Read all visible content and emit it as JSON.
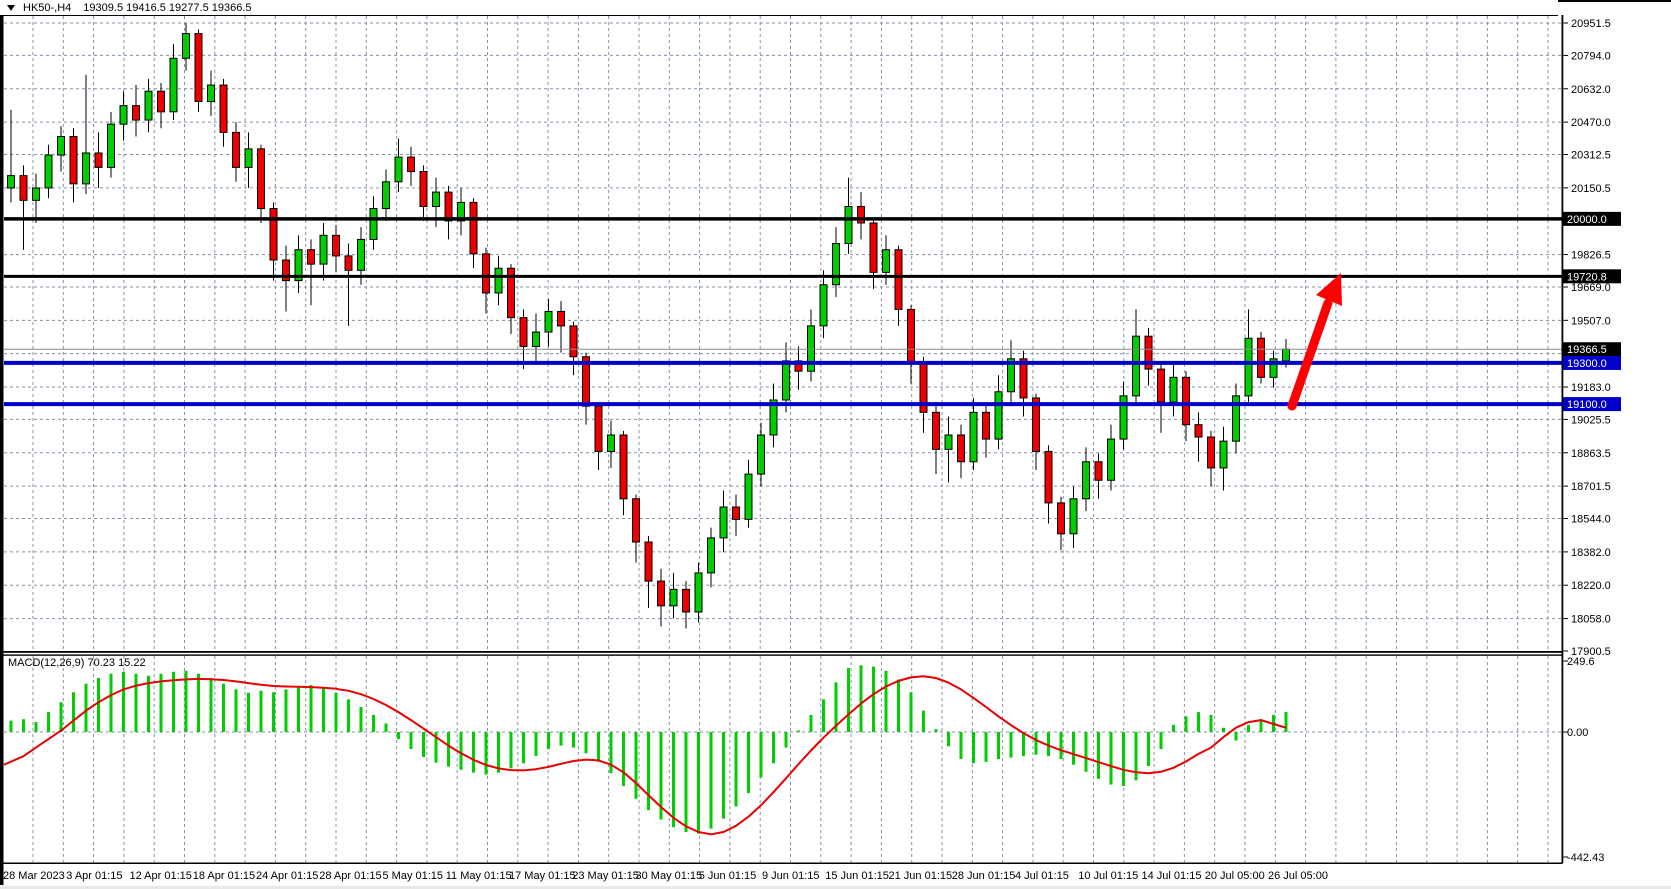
{
  "window": {
    "title_symbol": "HK50-,H4",
    "title_ohlc": "19309.5 19416.5 19277.5 19366.5"
  },
  "chart_data": {
    "type": "candlestick",
    "symbol": "HK50-,H4",
    "timeframe": "H4",
    "last_bar": {
      "open": 19309.5,
      "high": 19416.5,
      "low": 19277.5,
      "close": 19366.5
    },
    "price_axis": {
      "min": 17900.5,
      "max": 20951.5,
      "tick_labels": [
        "20951.5",
        "20794.0",
        "20632.0",
        "20470.0",
        "20312.5",
        "20150.5",
        "19826.5",
        "19669.0",
        "19507.0",
        "19183.0",
        "19025.5",
        "18863.5",
        "18701.5",
        "18544.0",
        "18382.0",
        "18220.0",
        "18058.0",
        "17900.5"
      ],
      "grid_prices": [
        20951.5,
        20794.0,
        20632.0,
        20470.0,
        20312.5,
        20150.5,
        19826.5,
        19669.0,
        19507.0,
        19345.0,
        19183.0,
        19025.5,
        18863.5,
        18701.5,
        18544.0,
        18382.0,
        18220.0,
        18058.0
      ],
      "tagged_levels": [
        {
          "label": "20000.0",
          "value": 20000.0,
          "bg": "#000000"
        },
        {
          "label": "19720.8",
          "value": 19720.8,
          "bg": "#000000"
        },
        {
          "label": "19366.5",
          "value": 19366.5,
          "bg": "#000000"
        },
        {
          "label": "19300.0",
          "value": 19300.0,
          "bg": "#0000C8"
        },
        {
          "label": "19100.0",
          "value": 19100.0,
          "bg": "#0000C8"
        }
      ]
    },
    "time_axis": {
      "labels": [
        "28 Mar 2023",
        "3 Apr 01:15",
        "12 Apr 01:15",
        "18 Apr 01:15",
        "24 Apr 01:15",
        "28 Apr 01:15",
        "5 May 01:15",
        "11 May 01:15",
        "17 May 01:15",
        "23 May 01:15",
        "30 May 01:15",
        "5 Jun 01:15",
        "9 Jun 01:15",
        "15 Jun 01:15",
        "21 Jun 01:15",
        "28 Jun 01:15",
        "4 Jul 01:15",
        "10 Jul 01:15",
        "14 Jul 01:15",
        "20 Jul 05:00",
        "26 Jul 05:00"
      ]
    },
    "levels": [
      {
        "value": 20000.0,
        "color": "#000000",
        "width": 3.5
      },
      {
        "value": 19720.8,
        "color": "#000000",
        "width": 3
      },
      {
        "value": 19300.0,
        "color": "#0000C8",
        "width": 4
      },
      {
        "value": 19100.0,
        "color": "#0000C8",
        "width": 4
      }
    ],
    "bid_line": {
      "value": 19366.5,
      "color": "#8C8C8C"
    },
    "arrow": {
      "tail": [
        1292,
        406
      ],
      "head": [
        1341,
        273
      ],
      "color": "#FF0000"
    },
    "colors": {
      "bull": "#00CE00",
      "bear": "#EE0000",
      "outline": "#000000",
      "grid": "#8193A5",
      "background": "#FFFFFF"
    },
    "candles": [
      [
        20150,
        20530,
        20080,
        20210
      ],
      [
        20210,
        20260,
        19850,
        20090
      ],
      [
        20090,
        20220,
        19980,
        20150
      ],
      [
        20150,
        20360,
        20100,
        20310
      ],
      [
        20310,
        20450,
        20230,
        20400
      ],
      [
        20400,
        20440,
        20080,
        20170
      ],
      [
        20170,
        20700,
        20120,
        20320
      ],
      [
        20320,
        20420,
        20150,
        20250
      ],
      [
        20250,
        20520,
        20200,
        20460
      ],
      [
        20460,
        20620,
        20380,
        20550
      ],
      [
        20550,
        20650,
        20400,
        20480
      ],
      [
        20480,
        20680,
        20420,
        20620
      ],
      [
        20620,
        20660,
        20440,
        20520
      ],
      [
        20520,
        20850,
        20480,
        20780
      ],
      [
        20780,
        20950,
        20720,
        20900
      ],
      [
        20900,
        20920,
        20520,
        20570
      ],
      [
        20570,
        20720,
        20500,
        20650
      ],
      [
        20650,
        20680,
        20350,
        20420
      ],
      [
        20420,
        20470,
        20180,
        20250
      ],
      [
        20250,
        20420,
        20150,
        20340
      ],
      [
        20340,
        20360,
        19980,
        20050
      ],
      [
        20050,
        20080,
        19700,
        19800
      ],
      [
        19800,
        19870,
        19550,
        19700
      ],
      [
        19700,
        19920,
        19640,
        19850
      ],
      [
        19850,
        19900,
        19580,
        19780
      ],
      [
        19780,
        19980,
        19700,
        19920
      ],
      [
        19920,
        19970,
        19740,
        19820
      ],
      [
        19820,
        19880,
        19480,
        19750
      ],
      [
        19750,
        19960,
        19680,
        19900
      ],
      [
        19900,
        20110,
        19850,
        20050
      ],
      [
        20050,
        20240,
        19990,
        20180
      ],
      [
        20180,
        20390,
        20130,
        20300
      ],
      [
        20300,
        20350,
        20160,
        20230
      ],
      [
        20230,
        20260,
        19990,
        20060
      ],
      [
        20060,
        20200,
        19960,
        20130
      ],
      [
        20130,
        20160,
        19900,
        19990
      ],
      [
        19990,
        20150,
        19920,
        20080
      ],
      [
        20080,
        20100,
        19760,
        19830
      ],
      [
        19830,
        19860,
        19540,
        19640
      ],
      [
        19640,
        19820,
        19580,
        19760
      ],
      [
        19760,
        19780,
        19440,
        19520
      ],
      [
        19520,
        19560,
        19270,
        19380
      ],
      [
        19380,
        19540,
        19300,
        19450
      ],
      [
        19450,
        19610,
        19380,
        19550
      ],
      [
        19550,
        19600,
        19350,
        19480
      ],
      [
        19480,
        19500,
        19240,
        19330
      ],
      [
        19330,
        19350,
        19000,
        19090
      ],
      [
        19090,
        19110,
        18780,
        18870
      ],
      [
        18870,
        19020,
        18790,
        18950
      ],
      [
        18950,
        18970,
        18560,
        18640
      ],
      [
        18640,
        18660,
        18330,
        18430
      ],
      [
        18430,
        18460,
        18110,
        18240
      ],
      [
        18240,
        18300,
        18020,
        18120
      ],
      [
        18120,
        18280,
        18060,
        18200
      ],
      [
        18200,
        18240,
        18010,
        18090
      ],
      [
        18090,
        18330,
        18040,
        18280
      ],
      [
        18280,
        18500,
        18210,
        18450
      ],
      [
        18450,
        18680,
        18380,
        18600
      ],
      [
        18600,
        18660,
        18460,
        18540
      ],
      [
        18540,
        18830,
        18500,
        18760
      ],
      [
        18760,
        19010,
        18700,
        18950
      ],
      [
        18950,
        19200,
        18890,
        19120
      ],
      [
        19120,
        19400,
        19060,
        19310
      ],
      [
        19310,
        19380,
        19170,
        19260
      ],
      [
        19260,
        19560,
        19210,
        19480
      ],
      [
        19480,
        19750,
        19420,
        19680
      ],
      [
        19680,
        19960,
        19620,
        19880
      ],
      [
        19880,
        20200,
        19830,
        20060
      ],
      [
        20060,
        20130,
        19900,
        19980
      ],
      [
        19980,
        20000,
        19660,
        19740
      ],
      [
        19740,
        19920,
        19680,
        19850
      ],
      [
        19850,
        19870,
        19480,
        19560
      ],
      [
        19560,
        19580,
        19200,
        19300
      ],
      [
        19300,
        19330,
        18960,
        19060
      ],
      [
        19060,
        19100,
        18760,
        18880
      ],
      [
        18880,
        19040,
        18720,
        18950
      ],
      [
        18950,
        19000,
        18740,
        18820
      ],
      [
        18820,
        19130,
        18780,
        19060
      ],
      [
        19060,
        19100,
        18840,
        18930
      ],
      [
        18930,
        19240,
        18880,
        19160
      ],
      [
        19160,
        19410,
        19100,
        19320
      ],
      [
        19320,
        19360,
        19040,
        19130
      ],
      [
        19130,
        19150,
        18780,
        18870
      ],
      [
        18870,
        18900,
        18520,
        18620
      ],
      [
        18620,
        18650,
        18390,
        18470
      ],
      [
        18470,
        18700,
        18400,
        18640
      ],
      [
        18640,
        18890,
        18580,
        18820
      ],
      [
        18820,
        18860,
        18640,
        18730
      ],
      [
        18730,
        19000,
        18680,
        18930
      ],
      [
        18930,
        19210,
        18880,
        19140
      ],
      [
        19140,
        19560,
        19090,
        19430
      ],
      [
        19430,
        19470,
        19190,
        19270
      ],
      [
        19270,
        19300,
        18960,
        19110
      ],
      [
        19110,
        19300,
        19040,
        19230
      ],
      [
        19230,
        19260,
        18920,
        19000
      ],
      [
        19000,
        19060,
        18820,
        18940
      ],
      [
        18940,
        18970,
        18700,
        18790
      ],
      [
        18790,
        18990,
        18680,
        18920
      ],
      [
        18920,
        19200,
        18860,
        19140
      ],
      [
        19140,
        19560,
        19090,
        19420
      ],
      [
        19420,
        19450,
        19200,
        19230
      ],
      [
        19230,
        19360,
        19180,
        19320
      ],
      [
        19309.5,
        19416.5,
        19277.5,
        19366.5
      ]
    ],
    "macd": {
      "name": "MACD(12,26,9)",
      "values": "70.23 15.22",
      "axis": {
        "top": "249.6",
        "zero": "0.00",
        "bottom": "-442.43"
      },
      "colors": {
        "histogram": "#00CE00",
        "signal": "#E80000"
      },
      "histogram": [
        40,
        45,
        35,
        70,
        105,
        140,
        170,
        190,
        205,
        212,
        205,
        198,
        205,
        212,
        215,
        205,
        190,
        170,
        150,
        138,
        145,
        140,
        150,
        158,
        165,
        155,
        138,
        115,
        88,
        60,
        30,
        -25,
        -60,
        -88,
        -108,
        -122,
        -133,
        -143,
        -150,
        -143,
        -128,
        -110,
        -85,
        -60,
        -48,
        -55,
        -75,
        -105,
        -145,
        -190,
        -235,
        -275,
        -308,
        -335,
        -352,
        -358,
        -340,
        -305,
        -262,
        -215,
        -160,
        -110,
        -55,
        5,
        60,
        115,
        175,
        225,
        235,
        230,
        215,
        185,
        140,
        75,
        10,
        -50,
        -95,
        -110,
        -105,
        -95,
        -90,
        -85,
        -80,
        -85,
        -95,
        -115,
        -140,
        -165,
        -185,
        -190,
        -170,
        -120,
        -60,
        25,
        55,
        70,
        60,
        15,
        -30,
        25,
        45,
        60,
        70.23
      ],
      "signal": [
        -115,
        -85,
        -55,
        -25,
        5,
        40,
        75,
        105,
        130,
        150,
        163,
        172,
        178,
        182,
        185,
        187,
        186,
        183,
        178,
        172,
        166,
        162,
        160,
        159,
        158,
        156,
        152,
        145,
        133,
        116,
        95,
        70,
        42,
        12,
        -18,
        -48,
        -75,
        -98,
        -116,
        -128,
        -134,
        -135,
        -131,
        -123,
        -112,
        -102,
        -97,
        -100,
        -115,
        -142,
        -180,
        -222,
        -264,
        -302,
        -332,
        -352,
        -360,
        -352,
        -330,
        -298,
        -258,
        -212,
        -163,
        -113,
        -65,
        -20,
        22,
        62,
        100,
        133,
        160,
        180,
        192,
        196,
        190,
        174,
        150,
        120,
        88,
        55,
        24,
        -4,
        -28,
        -48,
        -64,
        -78,
        -92,
        -106,
        -120,
        -133,
        -142,
        -145,
        -140,
        -126,
        -104,
        -77,
        -55,
        -18,
        15,
        35,
        42,
        28,
        15.22
      ]
    }
  }
}
